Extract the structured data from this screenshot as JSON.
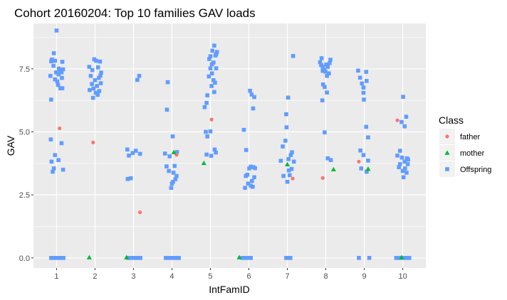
{
  "chart_data": {
    "type": "scatter",
    "title": "Cohort 20160204: Top 10 families GAV loads",
    "xlabel": "IntFamID",
    "ylabel": "GAV",
    "categories": [
      "1",
      "2",
      "3",
      "4",
      "5",
      "6",
      "7",
      "8",
      "9",
      "10"
    ],
    "ylim": [
      -0.4,
      9.3
    ],
    "yticks": [
      0.0,
      2.5,
      5.0,
      7.5
    ],
    "ytick_labels": [
      "0.0",
      "2.5",
      "5.0",
      "7.5"
    ],
    "grid": true,
    "legend": {
      "title": "Class",
      "position": "right"
    },
    "series": [
      {
        "name": "father",
        "marker": "circle",
        "color": "#F8766D",
        "points": [
          [
            1.08,
            5.14
          ],
          [
            1.95,
            4.58
          ],
          [
            3.17,
            1.81
          ],
          [
            4.12,
            4.09
          ],
          [
            5.03,
            5.49
          ],
          [
            7.14,
            3.15
          ],
          [
            7.92,
            3.17
          ],
          [
            8.86,
            3.82
          ],
          [
            9.86,
            5.46
          ]
        ]
      },
      {
        "name": "mother",
        "marker": "triangle",
        "color": "#00BA38",
        "points": [
          [
            1.85,
            0.02
          ],
          [
            2.82,
            0.02
          ],
          [
            4.05,
            4.19
          ],
          [
            4.83,
            3.76
          ],
          [
            5.75,
            0.02
          ],
          [
            7.0,
            3.71
          ],
          [
            8.2,
            3.51
          ],
          [
            9.1,
            3.53
          ],
          [
            9.97,
            0.02
          ]
        ]
      },
      {
        "name": "Offspring",
        "marker": "square",
        "color": "#619CFF",
        "points": [
          [
            0.84,
            7.22
          ],
          [
            0.86,
            7.8
          ],
          [
            0.88,
            7.87
          ],
          [
            0.92,
            7.62
          ],
          [
            0.96,
            7.82
          ],
          [
            0.99,
            7.36
          ],
          [
            0.93,
            8.12
          ],
          [
            1.0,
            9.02
          ],
          [
            1.06,
            7.51
          ],
          [
            1.1,
            7.42
          ],
          [
            1.13,
            7.36
          ],
          [
            1.15,
            7.78
          ],
          [
            1.17,
            7.48
          ],
          [
            1.04,
            6.86
          ],
          [
            1.1,
            6.73
          ],
          [
            1.15,
            6.73
          ],
          [
            1.02,
            7.0
          ],
          [
            0.96,
            7.08
          ],
          [
            1.05,
            7.28
          ],
          [
            1.14,
            7.14
          ],
          [
            0.86,
            6.28
          ],
          [
            0.85,
            4.7
          ],
          [
            0.96,
            4.08
          ],
          [
            1.13,
            4.55
          ],
          [
            0.87,
            3.82
          ],
          [
            0.93,
            3.55
          ],
          [
            1.05,
            3.88
          ],
          [
            1.17,
            3.5
          ],
          [
            0.9,
            3.42
          ],
          [
            0.86,
            0.0
          ],
          [
            0.92,
            0.0
          ],
          [
            1.0,
            0.0
          ],
          [
            1.1,
            0.0
          ],
          [
            1.18,
            0.0
          ],
          [
            1.85,
            7.58
          ],
          [
            1.89,
            7.22
          ],
          [
            1.93,
            7.45
          ],
          [
            1.98,
            7.88
          ],
          [
            2.03,
            7.82
          ],
          [
            2.08,
            7.56
          ],
          [
            2.13,
            7.79
          ],
          [
            2.16,
            7.35
          ],
          [
            1.92,
            6.9
          ],
          [
            2.0,
            7.05
          ],
          [
            2.05,
            6.82
          ],
          [
            2.1,
            7.14
          ],
          [
            2.15,
            6.93
          ],
          [
            1.86,
            6.66
          ],
          [
            1.96,
            6.72
          ],
          [
            2.02,
            6.55
          ],
          [
            2.11,
            6.62
          ],
          [
            1.95,
            6.35
          ],
          [
            2.07,
            6.47
          ],
          [
            2.14,
            7.23
          ],
          [
            2.84,
            4.3
          ],
          [
            2.88,
            4.06
          ],
          [
            2.98,
            4.16
          ],
          [
            3.17,
            4.13
          ],
          [
            3.06,
            4.25
          ],
          [
            2.85,
            3.13
          ],
          [
            2.93,
            3.16
          ],
          [
            2.86,
            0.0
          ],
          [
            2.93,
            0.0
          ],
          [
            3.02,
            0.0
          ],
          [
            3.08,
            0.0
          ],
          [
            3.14,
            0.0
          ],
          [
            3.18,
            0.0
          ],
          [
            3.1,
            7.06
          ],
          [
            3.15,
            7.22
          ],
          [
            3.82,
            4.14
          ],
          [
            3.86,
            3.63
          ],
          [
            3.92,
            3.45
          ],
          [
            4.04,
            3.38
          ],
          [
            4.09,
            3.12
          ],
          [
            4.0,
            2.95
          ],
          [
            4.13,
            4.2
          ],
          [
            3.94,
            4.03
          ],
          [
            3.87,
            5.88
          ],
          [
            3.89,
            6.97
          ],
          [
            4.02,
            4.82
          ],
          [
            4.07,
            3.65
          ],
          [
            4.12,
            3.25
          ],
          [
            4.03,
            3.02
          ],
          [
            3.98,
            2.78
          ],
          [
            3.84,
            0.0
          ],
          [
            3.9,
            0.0
          ],
          [
            3.96,
            0.0
          ],
          [
            4.02,
            0.0
          ],
          [
            4.08,
            0.0
          ],
          [
            4.14,
            0.0
          ],
          [
            4.18,
            0.0
          ],
          [
            4.85,
            5.98
          ],
          [
            4.92,
            6.45
          ],
          [
            4.96,
            7.2
          ],
          [
            5.0,
            7.52
          ],
          [
            5.04,
            7.68
          ],
          [
            5.08,
            7.75
          ],
          [
            5.13,
            8.03
          ],
          [
            5.17,
            8.17
          ],
          [
            5.0,
            8.0
          ],
          [
            5.05,
            8.22
          ],
          [
            5.1,
            8.42
          ],
          [
            5.15,
            8.08
          ],
          [
            5.03,
            6.82
          ],
          [
            5.08,
            7.05
          ],
          [
            4.9,
            6.15
          ],
          [
            5.12,
            6.95
          ],
          [
            4.97,
            7.89
          ],
          [
            5.15,
            7.52
          ],
          [
            5.04,
            7.32
          ],
          [
            5.1,
            6.58
          ],
          [
            4.88,
            5.0
          ],
          [
            4.92,
            4.82
          ],
          [
            5.0,
            5.02
          ],
          [
            4.9,
            4.1
          ],
          [
            5.02,
            4.05
          ],
          [
            5.11,
            4.3
          ],
          [
            5.14,
            4.18
          ],
          [
            5.87,
            5.08
          ],
          [
            5.93,
            4.28
          ],
          [
            6.01,
            3.55
          ],
          [
            6.05,
            3.62
          ],
          [
            6.12,
            3.6
          ],
          [
            6.16,
            3.56
          ],
          [
            5.92,
            3.25
          ],
          [
            5.98,
            2.95
          ],
          [
            6.08,
            3.05
          ],
          [
            6.14,
            3.2
          ],
          [
            5.96,
            3.3
          ],
          [
            6.05,
            2.86
          ],
          [
            5.9,
            2.78
          ],
          [
            6.1,
            2.82
          ],
          [
            6.07,
            6.48
          ],
          [
            6.14,
            6.38
          ],
          [
            6.03,
            6.63
          ],
          [
            6.11,
            5.93
          ],
          [
            5.83,
            0.0
          ],
          [
            5.9,
            0.0
          ],
          [
            5.97,
            0.0
          ],
          [
            6.05,
            0.0
          ],
          [
            6.83,
            3.85
          ],
          [
            6.88,
            4.42
          ],
          [
            6.95,
            4.65
          ],
          [
            6.98,
            5.18
          ],
          [
            7.03,
            3.92
          ],
          [
            7.09,
            4.08
          ],
          [
            7.12,
            4.19
          ],
          [
            7.04,
            3.47
          ],
          [
            7.06,
            3.28
          ],
          [
            7.11,
            3.53
          ],
          [
            7.17,
            3.82
          ],
          [
            6.9,
            3.25
          ],
          [
            7.0,
            3.02
          ],
          [
            6.97,
            5.7
          ],
          [
            7.02,
            6.36
          ],
          [
            7.15,
            8.01
          ],
          [
            6.97,
            0.0
          ],
          [
            7.03,
            0.0
          ],
          [
            7.08,
            0.0
          ],
          [
            7.85,
            7.76
          ],
          [
            7.88,
            7.65
          ],
          [
            7.92,
            7.58
          ],
          [
            7.96,
            7.47
          ],
          [
            7.99,
            7.39
          ],
          [
            8.03,
            7.22
          ],
          [
            8.08,
            7.32
          ],
          [
            8.1,
            7.73
          ],
          [
            8.12,
            7.86
          ],
          [
            7.89,
            7.92
          ],
          [
            7.92,
            7.42
          ],
          [
            8.01,
            7.67
          ],
          [
            8.05,
            7.58
          ],
          [
            7.93,
            6.88
          ],
          [
            7.97,
            6.78
          ],
          [
            8.03,
            6.56
          ],
          [
            7.91,
            6.25
          ],
          [
            7.97,
            4.98
          ],
          [
            8.05,
            3.95
          ],
          [
            8.13,
            3.88
          ],
          [
            8.84,
            7.43
          ],
          [
            8.89,
            7.15
          ],
          [
            8.94,
            6.92
          ],
          [
            8.98,
            6.76
          ],
          [
            9.05,
            7.38
          ],
          [
            9.06,
            7.02
          ],
          [
            8.98,
            6.55
          ],
          [
            8.99,
            6.28
          ],
          [
            9.05,
            5.2
          ],
          [
            9.1,
            4.78
          ],
          [
            8.9,
            4.26
          ],
          [
            8.98,
            4.08
          ],
          [
            9.1,
            3.86
          ],
          [
            8.92,
            3.55
          ],
          [
            9.06,
            3.42
          ],
          [
            8.86,
            0.0
          ],
          [
            9.13,
            0.0
          ],
          [
            9.86,
            4.06
          ],
          [
            9.93,
            4.25
          ],
          [
            9.98,
            3.98
          ],
          [
            10.05,
            3.82
          ],
          [
            10.11,
            3.95
          ],
          [
            10.14,
            3.9
          ],
          [
            9.9,
            3.6
          ],
          [
            10.0,
            3.45
          ],
          [
            10.06,
            3.55
          ],
          [
            10.1,
            3.38
          ],
          [
            10.13,
            3.72
          ],
          [
            9.93,
            3.72
          ],
          [
            10.02,
            3.2
          ],
          [
            9.97,
            5.39
          ],
          [
            10.05,
            5.22
          ],
          [
            10.09,
            5.6
          ],
          [
            10.01,
            6.39
          ],
          [
            9.83,
            0.0
          ],
          [
            9.89,
            0.0
          ],
          [
            9.95,
            0.0
          ],
          [
            10.03,
            0.0
          ],
          [
            10.12,
            0.0
          ],
          [
            10.17,
            0.0
          ]
        ]
      }
    ]
  }
}
